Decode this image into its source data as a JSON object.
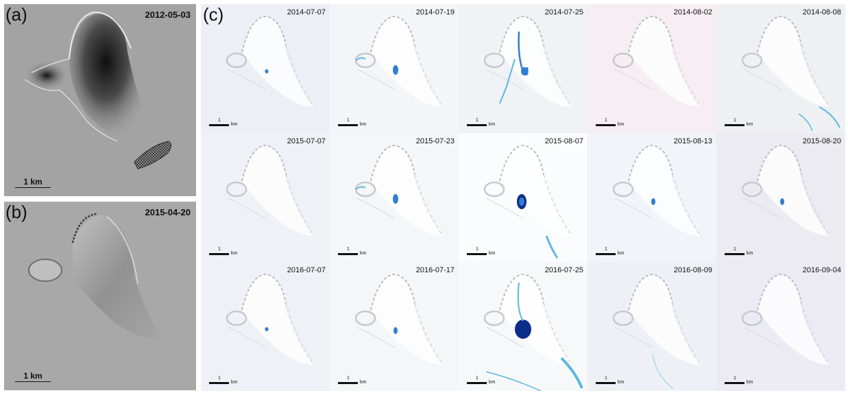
{
  "panels": {
    "a": {
      "letter": "(a)",
      "date": "2012-05-03",
      "scale_label": "1 km"
    },
    "b": {
      "letter": "(b)",
      "date": "2015-04-20",
      "scale_label": "1 km"
    },
    "c": {
      "letter": "(c)"
    }
  },
  "tile_scale": {
    "number": "1",
    "unit": "km"
  },
  "grid_rows": [
    {
      "tiles": [
        {
          "date": "2014-07-07",
          "tint": "#eceff6",
          "lakes": "tiny"
        },
        {
          "date": "2014-07-19",
          "tint": "#f3f5f8",
          "lakes": "medium"
        },
        {
          "date": "2014-07-25",
          "tint": "#f0f2f6",
          "lakes": "ring"
        },
        {
          "date": "2014-08-02",
          "tint": "#f6eef2",
          "lakes": "none"
        },
        {
          "date": "2014-08-08",
          "tint": "#eef0f4",
          "lakes": "streams"
        }
      ]
    },
    {
      "tiles": [
        {
          "date": "2015-07-07",
          "tint": "#eef1f6",
          "lakes": "none"
        },
        {
          "date": "2015-07-23",
          "tint": "#f4f6f8",
          "lakes": "medium"
        },
        {
          "date": "2015-08-07",
          "tint": "#fbfcfd",
          "lakes": "large"
        },
        {
          "date": "2015-08-13",
          "tint": "#f1f4f8",
          "lakes": "small"
        },
        {
          "date": "2015-08-20",
          "tint": "#ebebf1",
          "lakes": "small"
        }
      ]
    },
    {
      "tiles": [
        {
          "date": "2016-07-07",
          "tint": "#eef1f6",
          "lakes": "tiny"
        },
        {
          "date": "2016-07-17",
          "tint": "#f4f6f8",
          "lakes": "small"
        },
        {
          "date": "2016-07-25",
          "tint": "#f7f8fa",
          "lakes": "huge"
        },
        {
          "date": "2016-08-09",
          "tint": "#eef0f6",
          "lakes": "faint"
        },
        {
          "date": "2016-09-04",
          "tint": "#ecebf3",
          "lakes": "none"
        }
      ]
    }
  ],
  "colors": {
    "lake": "#2f7fd0",
    "deep_lake": "#0c2d8a",
    "stream": "#5ab8de"
  }
}
